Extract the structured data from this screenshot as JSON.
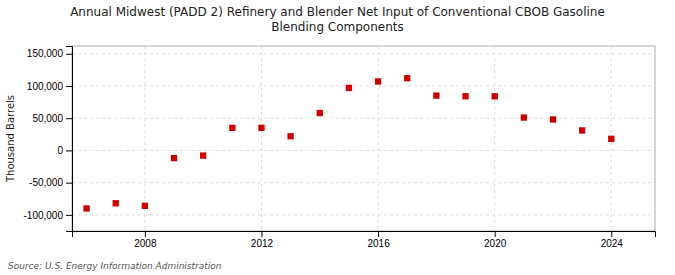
{
  "chart_data": {
    "type": "scatter",
    "title": "Annual Midwest (PADD 2) Refinery and Blender Net Input of Conventional CBOB Gasoline\nBlending Components",
    "ylabel": "Thousand Barrels",
    "source": "Source: U.S. Energy Information Administration",
    "x": [
      2006,
      2007,
      2008,
      2009,
      2010,
      2011,
      2012,
      2013,
      2014,
      2015,
      2016,
      2017,
      2018,
      2019,
      2020,
      2021,
      2022,
      2023,
      2024
    ],
    "values": [
      -90000,
      -82000,
      -86000,
      -12000,
      -8000,
      35000,
      35000,
      22000,
      58000,
      97000,
      107000,
      112000,
      85000,
      84000,
      84000,
      51000,
      48000,
      31000,
      18000
    ],
    "color": "#cc0000",
    "marker": "square",
    "xlim": [
      2005.5,
      2025.5
    ],
    "xticks": [
      2008,
      2012,
      2016,
      2020,
      2024
    ],
    "ylim": [
      -125000,
      162000
    ],
    "yticks": [
      {
        "value": -100000,
        "label": "-100,000"
      },
      {
        "value": -50000,
        "label": "-50,000"
      },
      0,
      {
        "value": 50000,
        "label": "50,000"
      },
      {
        "value": 100000,
        "label": "100,000"
      },
      {
        "value": 150000,
        "label": "150,000"
      }
    ],
    "grid": true
  }
}
